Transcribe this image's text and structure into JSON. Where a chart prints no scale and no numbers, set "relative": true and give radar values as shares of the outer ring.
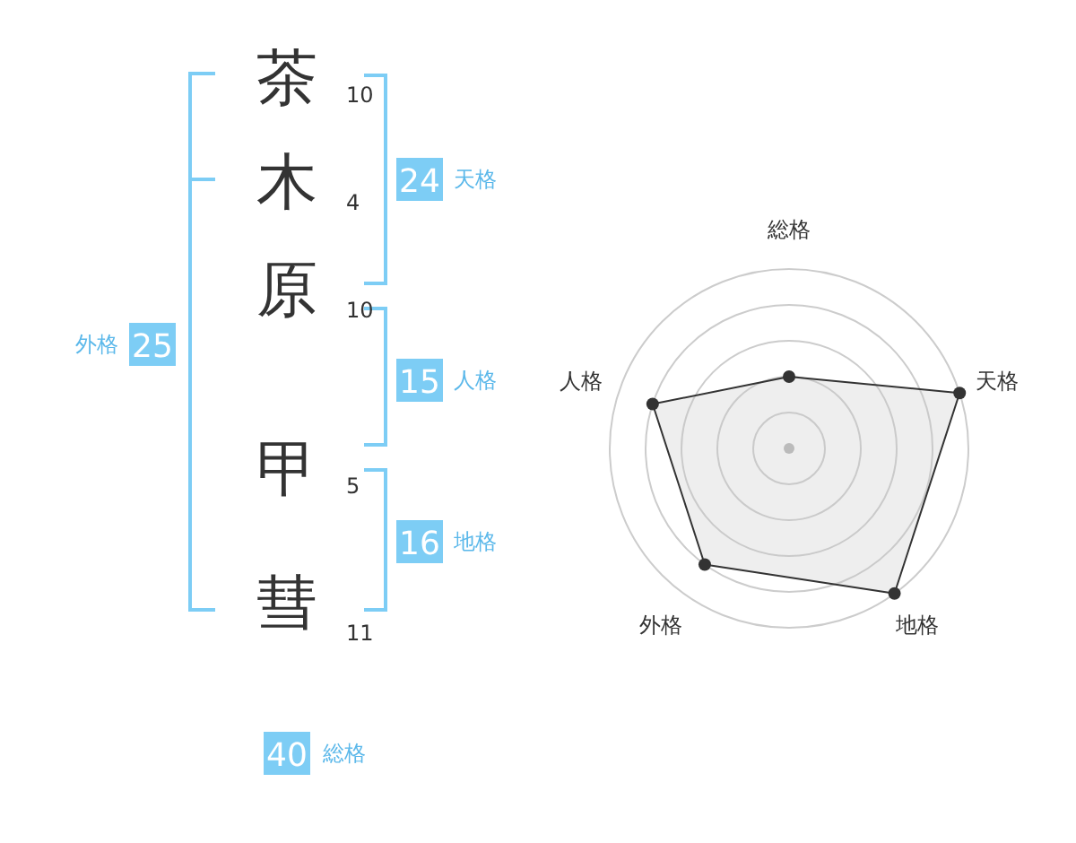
{
  "chart_data": [
    {
      "type": "other",
      "annotations": [
        "茶",
        "10",
        "木",
        "4",
        "原",
        "10",
        "甲",
        "5",
        "彗",
        "11",
        "24",
        "天格",
        "15",
        "人格",
        "16",
        "地格",
        "25",
        "外格",
        "40",
        "総格"
      ]
    },
    {
      "type": "radar",
      "categories": [
        "総格",
        "天格",
        "地格",
        "外格",
        "人格"
      ],
      "relative": true,
      "grid": true,
      "marker": "circle",
      "series": [
        {
          "color": "#333333",
          "values": [
            0.4,
            1,
            1,
            0.8,
            0.8
          ]
        }
      ]
    }
  ]
}
